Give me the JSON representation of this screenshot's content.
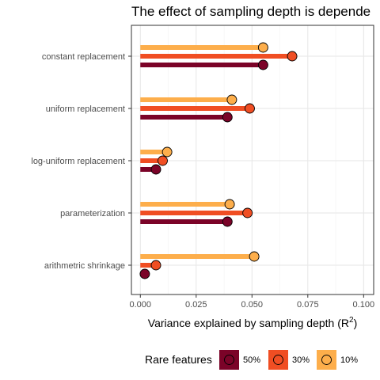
{
  "chart_data": {
    "type": "lollipop",
    "title": "The effect of sampling depth is depende",
    "xlabel": "Variance explained by sampling depth (R",
    "xlabel_superscript": "2",
    "xlabel_suffix": ")",
    "xlim": [
      -0.004,
      0.1045
    ],
    "xticks": [
      "0.000",
      "0.025",
      "0.050",
      "0.075",
      "0.100"
    ],
    "xtick_values": [
      0,
      0.025,
      0.05,
      0.075,
      0.1
    ],
    "grid": true,
    "categories": [
      "constant replacement",
      "uniform replacement",
      "log-uniform replacement",
      "parameterization",
      "arithmetric shrinkage"
    ],
    "series": [
      {
        "name": "10%",
        "color": "#FDAE4B",
        "values": [
          0.055,
          0.041,
          0.012,
          0.04,
          0.051
        ]
      },
      {
        "name": "30%",
        "color": "#F04E23",
        "values": [
          0.068,
          0.049,
          0.01,
          0.048,
          0.007
        ]
      },
      {
        "name": "50%",
        "color": "#7B0328",
        "values": [
          0.055,
          0.039,
          0.007,
          0.039,
          0.002
        ]
      }
    ],
    "legend": {
      "title": "Rare features",
      "position": "bottom",
      "order": [
        "50%",
        "30%",
        "10%"
      ]
    }
  }
}
